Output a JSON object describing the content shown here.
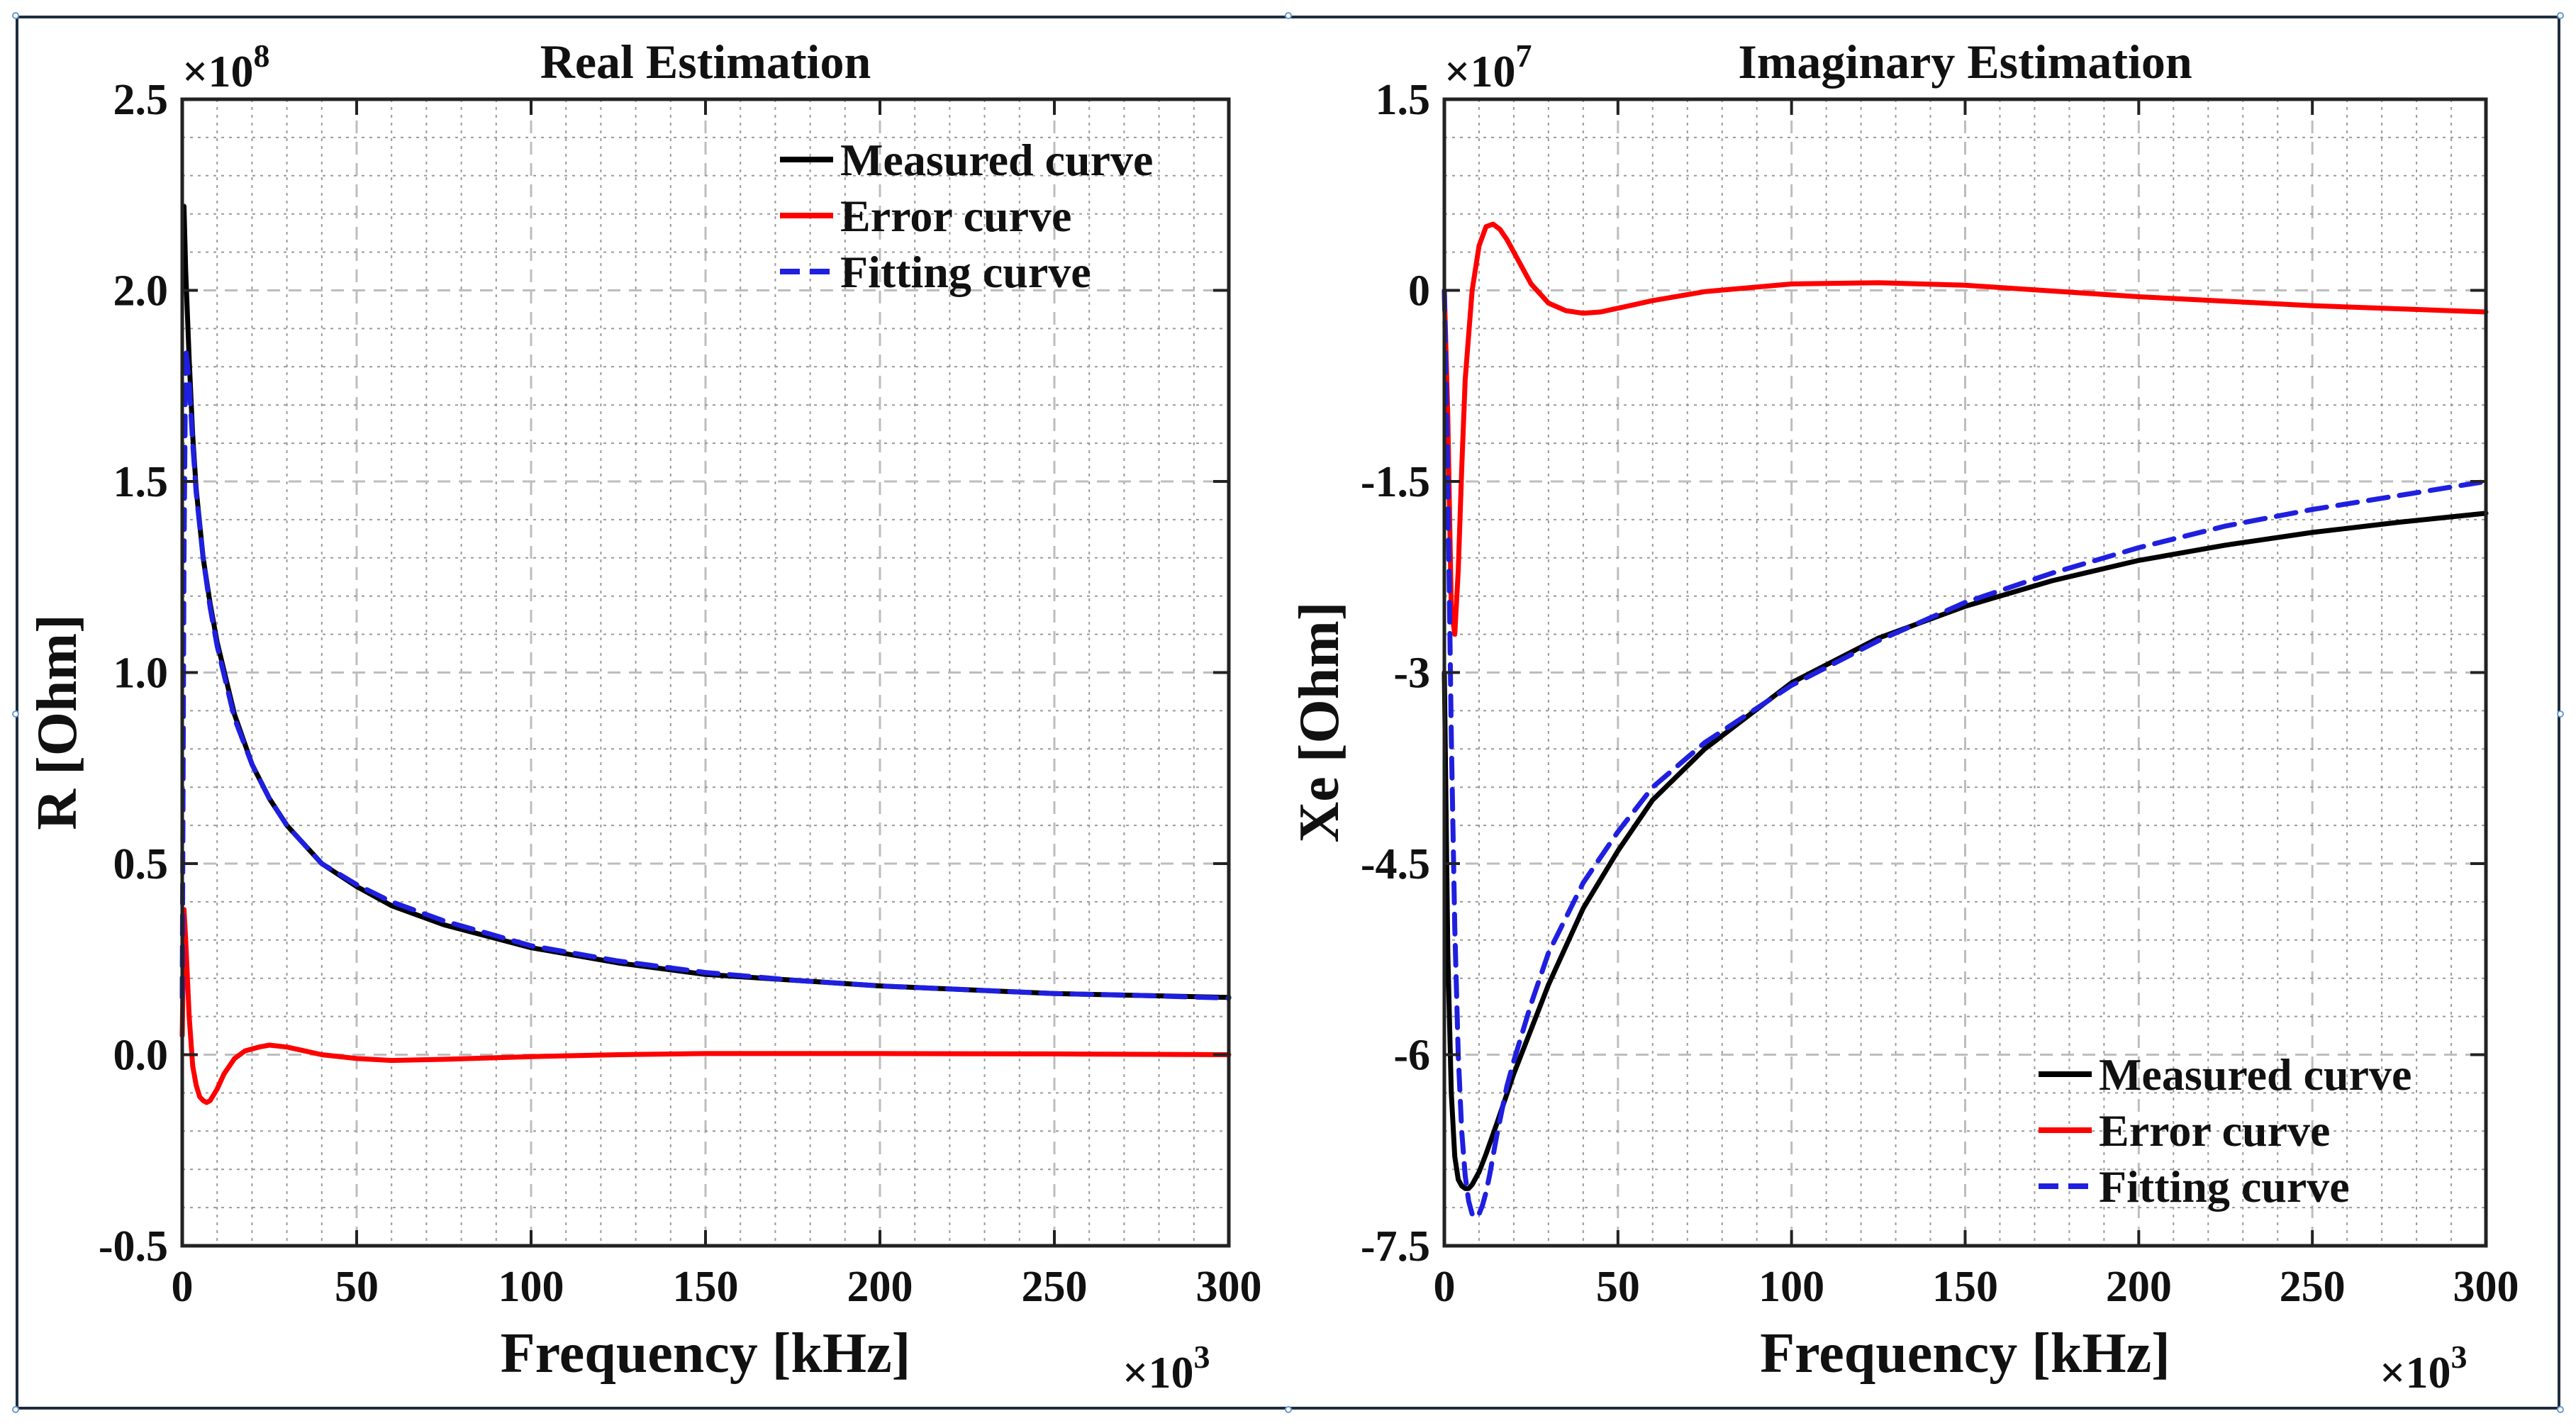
{
  "chart_data": [
    {
      "type": "line",
      "title": "Real Estimation",
      "xlabel": "Frequency [kHz]",
      "ylabel": "R [Ohm]",
      "x_multiplier": "×10",
      "x_multiplier_exp": "3",
      "y_multiplier": "×10",
      "y_multiplier_exp": "8",
      "xlim": [
        0,
        300
      ],
      "ylim": [
        -0.5,
        2.5
      ],
      "xticks": [
        0,
        50,
        100,
        150,
        200,
        250,
        300
      ],
      "yticks": [
        -0.5,
        0.0,
        0.5,
        1.0,
        1.5,
        2.0,
        2.5
      ],
      "xtick_labels": [
        "0",
        "50",
        "100",
        "150",
        "200",
        "250",
        "300"
      ],
      "ytick_labels": [
        "-0.5",
        "0.0",
        "0.5",
        "1.0",
        "1.5",
        "2.0",
        "2.5"
      ],
      "grid": true,
      "legend_position": "top-right",
      "series": [
        {
          "name": "Measured curve",
          "color": "#000000",
          "style": "solid",
          "x": [
            0.5,
            1,
            2,
            3,
            4,
            6,
            8,
            10,
            15,
            20,
            25,
            30,
            40,
            50,
            60,
            75,
            100,
            125,
            150,
            175,
            200,
            225,
            250,
            275,
            300
          ],
          "y": [
            2.22,
            2.05,
            1.82,
            1.62,
            1.48,
            1.3,
            1.18,
            1.08,
            0.89,
            0.76,
            0.67,
            0.6,
            0.5,
            0.44,
            0.39,
            0.34,
            0.28,
            0.24,
            0.21,
            0.195,
            0.18,
            0.17,
            0.16,
            0.155,
            0.15
          ]
        },
        {
          "name": "Error curve",
          "color": "#ff0000",
          "style": "solid",
          "x": [
            0,
            0.5,
            1,
            2,
            3,
            4,
            5,
            6,
            7,
            8,
            10,
            12,
            15,
            18,
            22,
            25,
            30,
            35,
            40,
            50,
            60,
            75,
            100,
            125,
            150,
            200,
            250,
            300
          ],
          "y": [
            0.05,
            0.38,
            0.3,
            0.1,
            -0.03,
            -0.08,
            -0.11,
            -0.12,
            -0.125,
            -0.12,
            -0.09,
            -0.05,
            -0.01,
            0.01,
            0.02,
            0.025,
            0.02,
            0.01,
            0.0,
            -0.01,
            -0.015,
            -0.012,
            -0.005,
            0.0,
            0.003,
            0.003,
            0.002,
            0.0
          ]
        },
        {
          "name": "Fitting curve",
          "color": "#1f1fe0",
          "style": "dashed",
          "x": [
            0,
            0.5,
            1,
            2,
            3,
            4,
            6,
            8,
            10,
            15,
            20,
            25,
            30,
            40,
            50,
            60,
            75,
            100,
            125,
            150,
            175,
            200,
            225,
            250,
            275,
            300
          ],
          "y": [
            0.15,
            1.3,
            1.85,
            1.76,
            1.6,
            1.47,
            1.3,
            1.17,
            1.07,
            0.88,
            0.76,
            0.67,
            0.6,
            0.5,
            0.445,
            0.4,
            0.35,
            0.285,
            0.245,
            0.215,
            0.195,
            0.18,
            0.17,
            0.16,
            0.155,
            0.148
          ]
        }
      ]
    },
    {
      "type": "line",
      "title": "Imaginary Estimation",
      "xlabel": "Frequency [kHz]",
      "ylabel": "Xe [Ohm]",
      "x_multiplier": "×10",
      "x_multiplier_exp": "3",
      "y_multiplier": "×10",
      "y_multiplier_exp": "7",
      "xlim": [
        0,
        300
      ],
      "ylim": [
        -7.5,
        1.5
      ],
      "xticks": [
        0,
        50,
        100,
        150,
        200,
        250,
        300
      ],
      "yticks": [
        -7.5,
        -6,
        -4.5,
        -3,
        -1.5,
        0,
        1.5
      ],
      "xtick_labels": [
        "0",
        "50",
        "100",
        "150",
        "200",
        "250",
        "300"
      ],
      "ytick_labels": [
        "-7.5",
        "-6",
        "-4.5",
        "-3",
        "-1.5",
        "0",
        "1.5"
      ],
      "grid": true,
      "legend_position": "bottom-right",
      "series": [
        {
          "name": "Measured curve",
          "color": "#000000",
          "style": "solid",
          "x": [
            0,
            1,
            2,
            3,
            4,
            5,
            6,
            7,
            8,
            10,
            12,
            15,
            20,
            25,
            30,
            40,
            50,
            60,
            75,
            100,
            125,
            150,
            175,
            200,
            225,
            250,
            275,
            300
          ],
          "y": [
            -3.0,
            -5.2,
            -6.3,
            -6.8,
            -6.98,
            -7.03,
            -7.05,
            -7.05,
            -7.02,
            -6.92,
            -6.78,
            -6.55,
            -6.15,
            -5.8,
            -5.45,
            -4.85,
            -4.4,
            -4.0,
            -3.6,
            -3.08,
            -2.73,
            -2.48,
            -2.28,
            -2.12,
            -2.0,
            -1.9,
            -1.82,
            -1.75
          ]
        },
        {
          "name": "Error curve",
          "color": "#ff0000",
          "style": "solid",
          "x": [
            0,
            1,
            2,
            3,
            4,
            5,
            6,
            8,
            10,
            12,
            14,
            16,
            18,
            20,
            25,
            30,
            35,
            40,
            45,
            50,
            60,
            75,
            100,
            125,
            150,
            200,
            250,
            300
          ],
          "y": [
            0.0,
            -1.0,
            -2.5,
            -2.7,
            -2.2,
            -1.4,
            -0.7,
            0.0,
            0.35,
            0.5,
            0.52,
            0.48,
            0.4,
            0.3,
            0.05,
            -0.1,
            -0.16,
            -0.18,
            -0.17,
            -0.14,
            -0.08,
            -0.01,
            0.05,
            0.06,
            0.04,
            -0.05,
            -0.12,
            -0.17
          ]
        },
        {
          "name": "Fitting curve",
          "color": "#1f1fe0",
          "style": "dashed",
          "x": [
            0,
            1,
            2,
            3,
            4,
            5,
            6,
            7,
            8,
            9,
            10,
            11,
            12,
            13,
            15,
            18,
            20,
            25,
            30,
            40,
            50,
            60,
            75,
            100,
            125,
            150,
            175,
            200,
            225,
            250,
            275,
            300
          ],
          "y": [
            0.0,
            -1.5,
            -3.5,
            -5.0,
            -6.0,
            -6.6,
            -6.95,
            -7.15,
            -7.25,
            -7.28,
            -7.25,
            -7.18,
            -7.08,
            -6.95,
            -6.65,
            -6.25,
            -6.05,
            -5.6,
            -5.2,
            -4.65,
            -4.25,
            -3.9,
            -3.55,
            -3.1,
            -2.75,
            -2.45,
            -2.22,
            -2.02,
            -1.85,
            -1.72,
            -1.61,
            -1.5
          ]
        }
      ]
    }
  ]
}
